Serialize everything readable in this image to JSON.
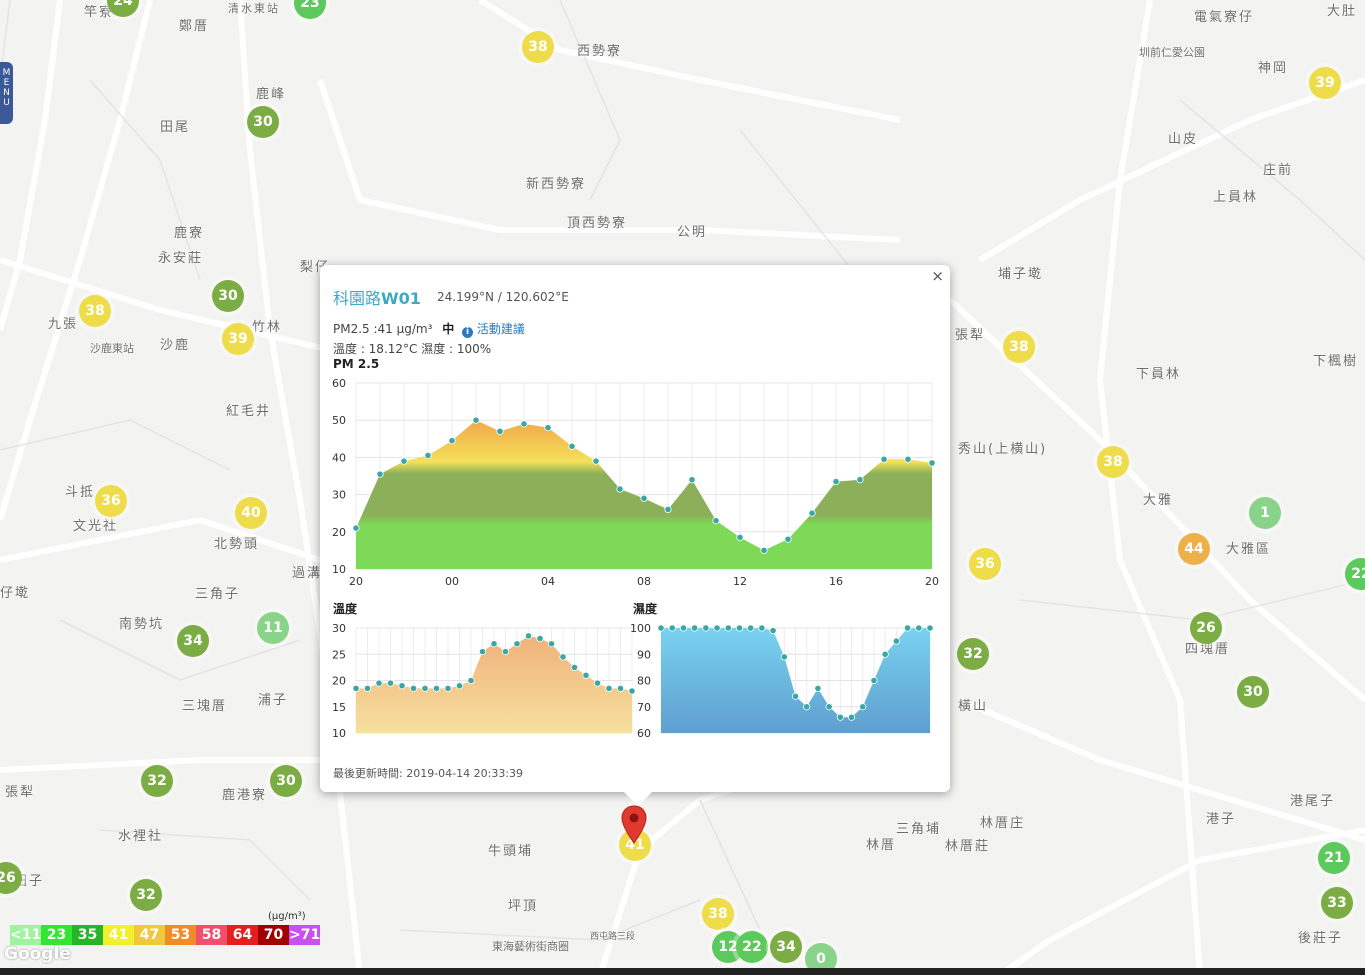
{
  "menu": {
    "label": "MENU"
  },
  "colors": {
    "green_dark": "#7cad44",
    "green_light": "#8ad38a",
    "green_bright": "#5bc95b",
    "yellow": "#eedc4a",
    "orange": "#eeb14a",
    "pm_green": "#7ed957",
    "temp_fill": "#f2c98a",
    "hum_fill": "#6fc2e6",
    "point": "#3aa7a7"
  },
  "places": [
    "竿寮",
    "鄭厝",
    "清水東站",
    "西勢寮",
    "電氣寮仔",
    "大肚",
    "圳前仁愛公園",
    "神岡",
    "鹿峰",
    "田尾",
    "山皮",
    "庄前",
    "新西勢寮",
    "頂西勢寮",
    "公明",
    "上員林",
    "鹿寮",
    "永安莊",
    "梨仔",
    "埔子墘",
    "九張",
    "沙鹿東站",
    "沙鹿",
    "竹林",
    "紅毛井",
    "張犁",
    "下員林",
    "下楓樹",
    "秀山(上横山)",
    "斗抵",
    "文光社",
    "北勢頭",
    "大雅",
    "大雅區",
    "仔墘",
    "三角子",
    "過溝",
    "南勢坑",
    "四塊厝",
    "三塊厝",
    "浦子",
    "橫山",
    "張犁",
    "鹿港寮",
    "水裡社",
    "牛頭埔",
    "林厝庄",
    "三角埔",
    "林厝",
    "林厝莊",
    "港子",
    "港尾子",
    "田子",
    "坪頂",
    "東海藝術街商圈",
    "西屯路三段",
    "後莊子"
  ],
  "markers": [
    {
      "value": "24"
    },
    {
      "value": "23"
    },
    {
      "value": "38"
    },
    {
      "value": "39"
    },
    {
      "value": "30"
    },
    {
      "value": "30"
    },
    {
      "value": "38"
    },
    {
      "value": "39"
    },
    {
      "value": "38"
    },
    {
      "value": "38"
    },
    {
      "value": "36"
    },
    {
      "value": "40"
    },
    {
      "value": "36"
    },
    {
      "value": "1"
    },
    {
      "value": "44"
    },
    {
      "value": "11"
    },
    {
      "value": "34"
    },
    {
      "value": "26"
    },
    {
      "value": "32"
    },
    {
      "value": "30"
    },
    {
      "value": "32"
    },
    {
      "value": "30"
    },
    {
      "value": "32"
    },
    {
      "value": "26"
    },
    {
      "value": "41"
    },
    {
      "value": "38"
    },
    {
      "value": "12"
    },
    {
      "value": "22"
    },
    {
      "value": "34"
    },
    {
      "value": "0"
    },
    {
      "value": "21"
    },
    {
      "value": "33"
    },
    {
      "value": "22"
    }
  ],
  "popup": {
    "station": "科園路",
    "station_code": "W01",
    "coords": "24.199°N / 120.602°E",
    "pm_text": "PM2.5 :41 μg/m³",
    "level": "中",
    "advice": "活動建議",
    "weather_text": "溫度 : 18.12°C 濕度 : 100%",
    "close": "×",
    "updated": "最後更新時間: 2019-04-14 20:33:39"
  },
  "chart_data": [
    {
      "type": "area",
      "title": "PM 2.5",
      "x": [
        "20",
        "21",
        "22",
        "23",
        "00",
        "01",
        "02",
        "03",
        "04",
        "05",
        "06",
        "07",
        "08",
        "09",
        "10",
        "11",
        "12",
        "13",
        "14",
        "15",
        "16",
        "17",
        "18",
        "19",
        "20"
      ],
      "xticks": [
        "20",
        "00",
        "04",
        "08",
        "12",
        "16",
        "20"
      ],
      "values": [
        21,
        35.5,
        39,
        40.5,
        44.5,
        50,
        47,
        49,
        48,
        43,
        39,
        31.5,
        29,
        26,
        34,
        23,
        18.5,
        15,
        18,
        25,
        33.5,
        34,
        39.5,
        39.5,
        38.5
      ],
      "ylim": [
        10,
        60
      ],
      "yticks": [
        60,
        50,
        40,
        30,
        20,
        10
      ]
    },
    {
      "type": "area",
      "title": "溫度",
      "x": [
        "20",
        "21",
        "22",
        "23",
        "00",
        "01",
        "02",
        "03",
        "04",
        "05",
        "06",
        "07",
        "08",
        "09",
        "10",
        "11",
        "12",
        "13",
        "14",
        "15",
        "16",
        "17",
        "18",
        "19",
        "20"
      ],
      "values": [
        18.5,
        18.5,
        19.5,
        19.5,
        19,
        18.5,
        18.5,
        18.5,
        18.5,
        19,
        20,
        25.5,
        27,
        25.5,
        27,
        28.5,
        28,
        27,
        24.5,
        22.5,
        21,
        19.5,
        18.5,
        18.5,
        18
      ],
      "ylim": [
        10,
        30
      ],
      "yticks": [
        30,
        25,
        20,
        15,
        10
      ]
    },
    {
      "type": "area",
      "title": "濕度",
      "x": [
        "20",
        "21",
        "22",
        "23",
        "00",
        "01",
        "02",
        "03",
        "04",
        "05",
        "06",
        "07",
        "08",
        "09",
        "10",
        "11",
        "12",
        "13",
        "14",
        "15",
        "16",
        "17",
        "18",
        "19",
        "20"
      ],
      "values": [
        100,
        100,
        100,
        100,
        100,
        100,
        100,
        100,
        100,
        100,
        99,
        89,
        74,
        70,
        77,
        70,
        66,
        66,
        70,
        80,
        90,
        95,
        100,
        100,
        100
      ],
      "ylim": [
        60,
        100
      ],
      "yticks": [
        100,
        90,
        80,
        70,
        60
      ]
    }
  ],
  "legend": {
    "unit": "(μg/m³)",
    "items": [
      {
        "label": "<11",
        "color": "#9cf59c"
      },
      {
        "label": "23",
        "color": "#32e632"
      },
      {
        "label": "35",
        "color": "#28b428"
      },
      {
        "label": "41",
        "color": "#f0f02c"
      },
      {
        "label": "47",
        "color": "#f0c83c"
      },
      {
        "label": "53",
        "color": "#f08c28"
      },
      {
        "label": "58",
        "color": "#f0506e"
      },
      {
        "label": "64",
        "color": "#e61e1e"
      },
      {
        "label": "70",
        "color": "#a00000"
      },
      {
        "label": ">71",
        "color": "#c850f0"
      }
    ]
  },
  "google": "Google"
}
